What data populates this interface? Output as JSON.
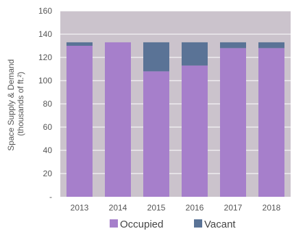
{
  "chart_data": {
    "type": "bar",
    "stacked": true,
    "categories": [
      "2013",
      "2014",
      "2015",
      "2016",
      "2017",
      "2018"
    ],
    "series": [
      {
        "name": "Occupied",
        "values": [
          130,
          133,
          108,
          113,
          128,
          128
        ],
        "color": "#a67fcb"
      },
      {
        "name": "Vacant",
        "values": [
          3,
          0,
          25,
          20,
          5,
          5
        ],
        "color": "#5a7396"
      }
    ],
    "ylabel_lines": [
      "Space Supply & Demand",
      "(thousands of ft.²)"
    ],
    "ylim": [
      0,
      160
    ],
    "yticks": [
      {
        "value": 0,
        "label": "-"
      },
      {
        "value": 20,
        "label": "20"
      },
      {
        "value": 40,
        "label": "40"
      },
      {
        "value": 60,
        "label": "60"
      },
      {
        "value": 80,
        "label": "80"
      },
      {
        "value": 100,
        "label": "100"
      },
      {
        "value": 120,
        "label": "120"
      },
      {
        "value": 140,
        "label": "140"
      },
      {
        "value": 160,
        "label": "160"
      }
    ],
    "plot_background": "#cbc3cc",
    "grid": true,
    "legend_position": "bottom"
  }
}
